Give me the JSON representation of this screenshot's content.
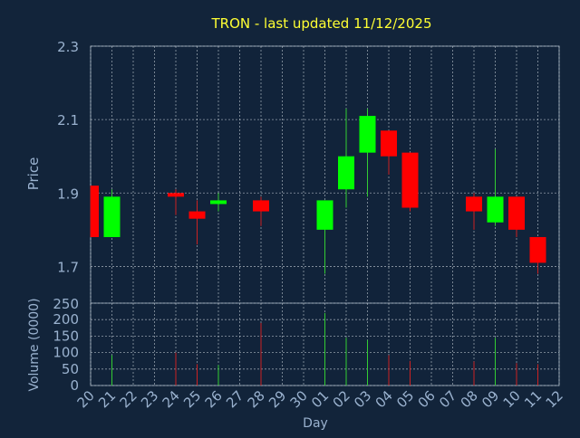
{
  "title": "TRON - last updated 11/12/2025",
  "colors": {
    "background": "#12243a",
    "plot_background": "#11233a",
    "title": "#ffff33",
    "axis_text": "#9ab2cf",
    "frame": "#8899aa",
    "grid": "#c8d0d8",
    "up": "#00ff00",
    "down": "#ff0000",
    "up_wick": "#33cc33",
    "down_wick": "#cc2222"
  },
  "chart_data": [
    {
      "type": "candlestick",
      "title": "TRON - last updated 11/12/2025",
      "ylabel": "Price",
      "ylim": [
        1.6,
        2.3
      ],
      "yticks": [
        1.7,
        1.9,
        2.1,
        2.3
      ],
      "grid": true,
      "day_labels": [
        "20",
        "21",
        "22",
        "23",
        "24",
        "25",
        "26",
        "27",
        "28",
        "29",
        "30",
        "01",
        "02",
        "03",
        "04",
        "05",
        "06",
        "07",
        "08",
        "09",
        "10",
        "11",
        "12"
      ],
      "candles": [
        {
          "day": "20",
          "open": 1.92,
          "high": 1.92,
          "low": 1.78,
          "close": 1.78
        },
        {
          "day": "21",
          "open": 1.78,
          "high": 1.91,
          "low": 1.78,
          "close": 1.89
        },
        {
          "day": "24",
          "open": 1.9,
          "high": 1.91,
          "low": 1.84,
          "close": 1.89
        },
        {
          "day": "25",
          "open": 1.85,
          "high": 1.88,
          "low": 1.76,
          "close": 1.83
        },
        {
          "day": "26",
          "open": 1.87,
          "high": 1.9,
          "low": 1.85,
          "close": 1.88
        },
        {
          "day": "28",
          "open": 1.88,
          "high": 1.89,
          "low": 1.81,
          "close": 1.85
        },
        {
          "day": "01",
          "open": 1.8,
          "high": 1.88,
          "low": 1.68,
          "close": 1.88
        },
        {
          "day": "02",
          "open": 1.91,
          "high": 2.13,
          "low": 1.86,
          "close": 2.0
        },
        {
          "day": "03",
          "open": 2.01,
          "high": 2.13,
          "low": 1.89,
          "close": 2.11
        },
        {
          "day": "04",
          "open": 2.07,
          "high": 2.07,
          "low": 1.95,
          "close": 2.0
        },
        {
          "day": "05",
          "open": 2.01,
          "high": 2.01,
          "low": 1.85,
          "close": 1.86
        },
        {
          "day": "08",
          "open": 1.89,
          "high": 1.9,
          "low": 1.8,
          "close": 1.85
        },
        {
          "day": "09",
          "open": 1.82,
          "high": 2.02,
          "low": 1.81,
          "close": 1.89
        },
        {
          "day": "10",
          "open": 1.89,
          "high": 1.89,
          "low": 1.78,
          "close": 1.8
        },
        {
          "day": "11",
          "open": 1.78,
          "high": 1.78,
          "low": 1.68,
          "close": 1.71
        }
      ]
    },
    {
      "type": "bar",
      "ylabel": "Volume (0000)",
      "xlabel": "Day",
      "ylim": [
        0,
        250
      ],
      "yticks": [
        0,
        50,
        100,
        150,
        200,
        250
      ],
      "grid": true,
      "categories": [
        "21",
        "24",
        "25",
        "26",
        "28",
        "01",
        "02",
        "03",
        "04",
        "05",
        "08",
        "09",
        "10",
        "11"
      ],
      "values": [
        92,
        100,
        65,
        62,
        190,
        220,
        145,
        138,
        92,
        75,
        73,
        145,
        68,
        65
      ],
      "direction": [
        "up",
        "down",
        "down",
        "up",
        "down",
        "up",
        "up",
        "up",
        "down",
        "down",
        "down",
        "up",
        "down",
        "down"
      ]
    }
  ]
}
